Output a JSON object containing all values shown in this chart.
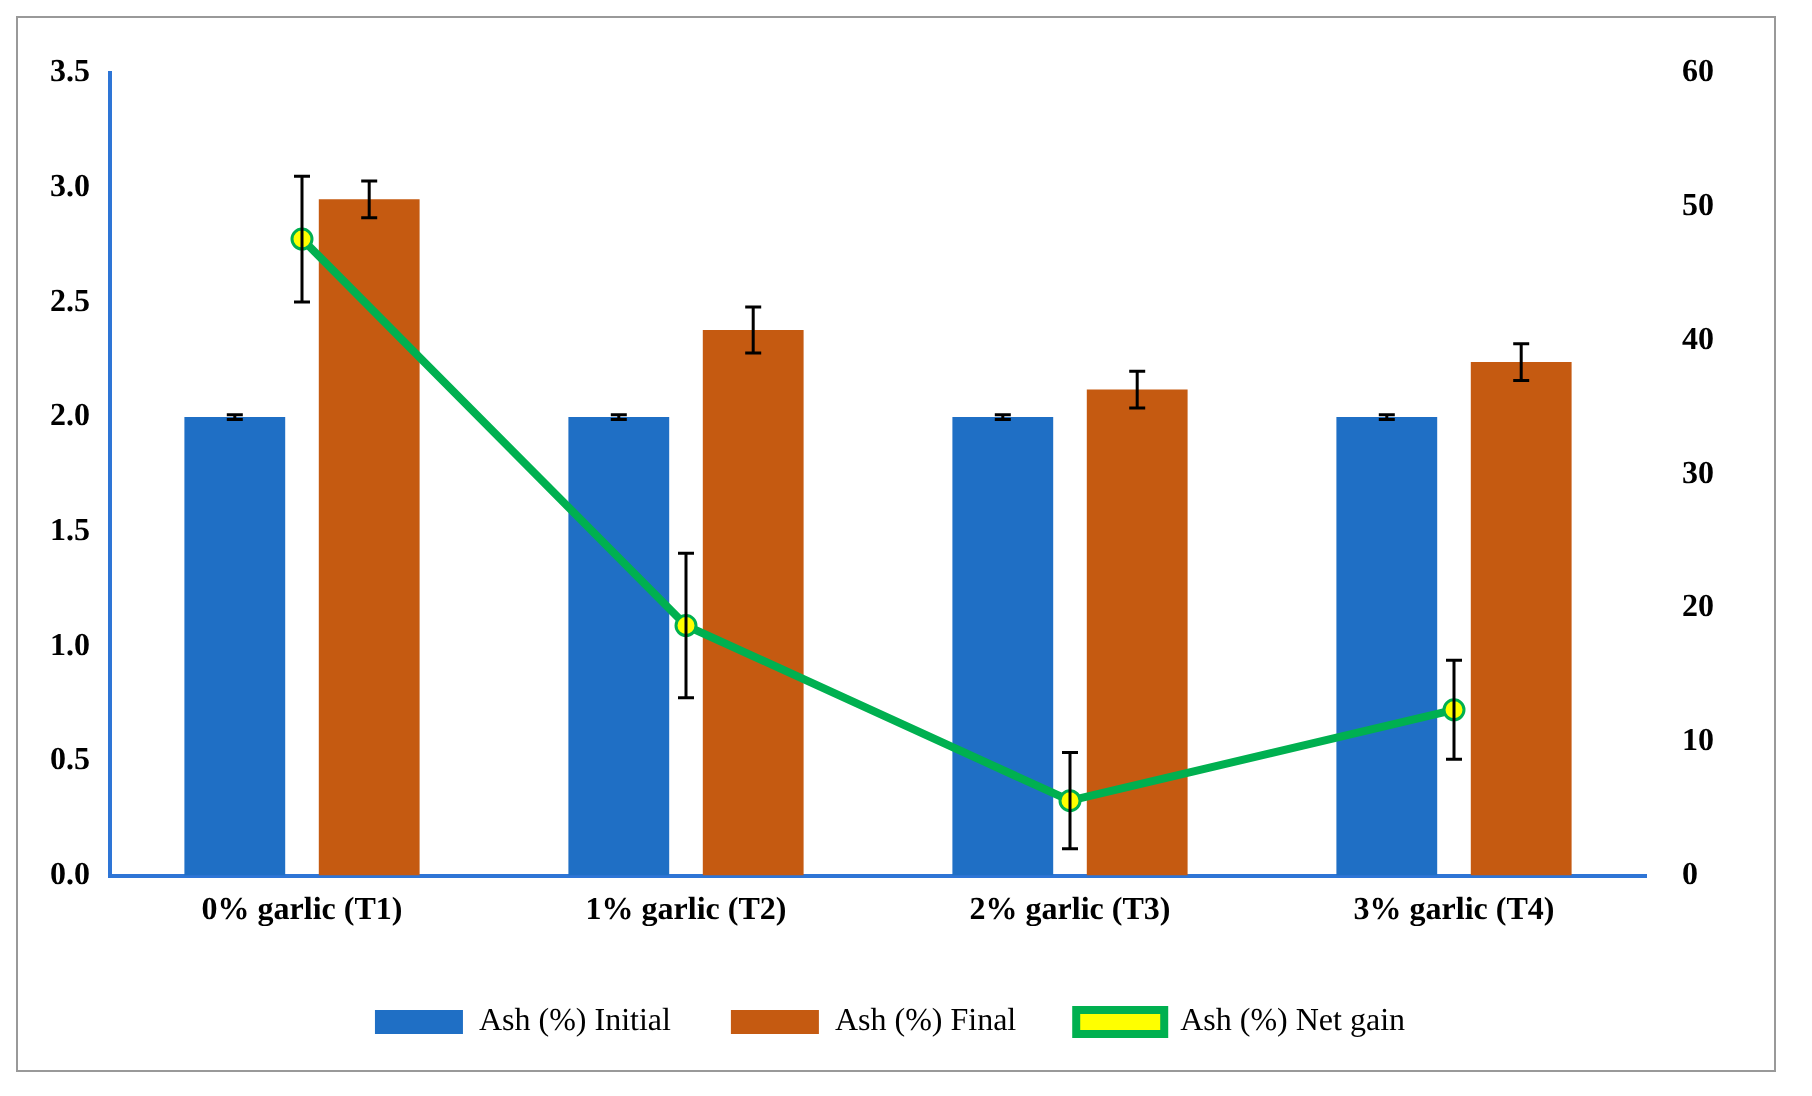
{
  "chart_data": {
    "type": "bar",
    "categories": [
      "0% garlic (T1)",
      "1% garlic (T2)",
      "2% garlic (T3)",
      "3% garlic (T4)"
    ],
    "series": [
      {
        "name": "Ash (%) Initial",
        "color": "#1f6fc5",
        "values": [
          2.0,
          2.0,
          2.0,
          2.0
        ],
        "errors": [
          0.01,
          0.01,
          0.01,
          0.01
        ]
      },
      {
        "name": "Ash (%) Final",
        "color": "#c55a11",
        "values": [
          2.95,
          2.38,
          2.12,
          2.24
        ],
        "errors": [
          0.08,
          0.1,
          0.08,
          0.08
        ]
      },
      {
        "name": "Ash (%) Net gain",
        "type": "line",
        "axis": "y2",
        "color": "#00b050",
        "marker": "circle",
        "values": [
          47.6,
          18.7,
          5.6,
          12.4
        ],
        "errors": [
          4.7,
          5.4,
          3.6,
          3.7
        ]
      }
    ],
    "ylim": [
      0,
      3.5
    ],
    "yticks": [
      {
        "value": 0,
        "label": "0.0"
      },
      {
        "value": 0.5,
        "label": "0.5"
      },
      {
        "value": 1,
        "label": "1.0"
      },
      {
        "value": 1.5,
        "label": "1.5"
      },
      {
        "value": 2,
        "label": "2.0"
      },
      {
        "value": 2.5,
        "label": "2.5"
      },
      {
        "value": 3,
        "label": "3.0"
      },
      {
        "value": 3.5,
        "label": "3.5"
      }
    ],
    "y2lim": [
      0,
      60
    ],
    "y2ticks": [
      0,
      10,
      20,
      30,
      40,
      50,
      60
    ],
    "grid": false,
    "legend": "bottom"
  }
}
